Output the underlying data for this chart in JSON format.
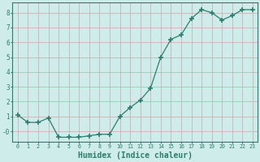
{
  "x": [
    0,
    1,
    2,
    3,
    4,
    5,
    6,
    7,
    8,
    9,
    10,
    11,
    12,
    13,
    14,
    15,
    16,
    17,
    18,
    19,
    20,
    21,
    22,
    23
  ],
  "y": [
    1.1,
    0.6,
    0.6,
    0.9,
    -0.4,
    -0.4,
    -0.4,
    -0.3,
    -0.2,
    -0.2,
    1.0,
    1.6,
    2.1,
    2.9,
    5.0,
    6.2,
    6.5,
    7.6,
    8.2,
    8.0,
    7.5,
    7.8,
    8.2,
    8.2
  ],
  "line_color": "#2e7d6e",
  "marker": "+",
  "marker_size": 4,
  "bg_color": "#cdecea",
  "grid_color": "#c8a8a8",
  "axis_color": "#2e7d6e",
  "tick_color": "#2e7d6e",
  "xlabel": "Humidex (Indice chaleur)",
  "xlabel_fontsize": 7,
  "ylabel_ticks": [
    0,
    1,
    2,
    3,
    4,
    5,
    6,
    7,
    8
  ],
  "ylim": [
    -0.7,
    8.7
  ],
  "xlim": [
    -0.5,
    23.5
  ]
}
